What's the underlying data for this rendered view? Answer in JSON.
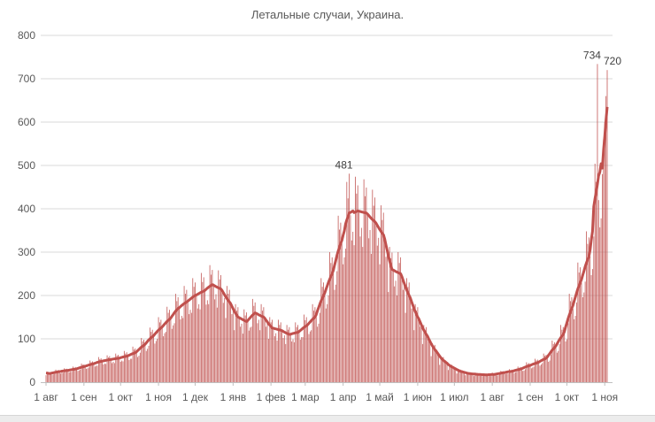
{
  "chart_data": {
    "type": "bar",
    "title": "Летальные случаи, Украина.",
    "xlabel": "",
    "ylabel": "",
    "start_date": "2020-08-01",
    "end_date": "2021-11-03",
    "ylim": [
      0,
      800
    ],
    "y_ticks": [
      "0",
      "100",
      "200",
      "300",
      "400",
      "500",
      "600",
      "700",
      "800"
    ],
    "x_tick_labels": [
      "1 авг",
      "1 сен",
      "1 окт",
      "1 ноя",
      "1 дек",
      "1 янв",
      "1 фев",
      "1 мар",
      "1 апр",
      "1 май",
      "1 июн",
      "1 июл",
      "1 авг",
      "1 сен",
      "1 окт",
      "1 ноя"
    ],
    "x_tick_dates": [
      "2020-08-01",
      "2020-09-01",
      "2020-10-01",
      "2020-11-01",
      "2020-12-01",
      "2021-01-01",
      "2021-02-01",
      "2021-03-01",
      "2021-04-01",
      "2021-05-01",
      "2021-06-01",
      "2021-07-01",
      "2021-08-01",
      "2021-09-01",
      "2021-10-01",
      "2021-11-01"
    ],
    "grid": true,
    "legend": "none",
    "series": [
      {
        "kind": "bar",
        "color": "#c0504d",
        "values": [
          16,
          24,
          22,
          23,
          20,
          17,
          18,
          19,
          29,
          26,
          28,
          24,
          20,
          22,
          22,
          32,
          30,
          31,
          27,
          23,
          24,
          24,
          36,
          33,
          35,
          30,
          26,
          27,
          29,
          43,
          40,
          41,
          36,
          31,
          32,
          34,
          50,
          46,
          48,
          42,
          36,
          38,
          38,
          58,
          53,
          55,
          48,
          41,
          43,
          42,
          62,
          57,
          60,
          52,
          44,
          47,
          44,
          66,
          61,
          63,
          55,
          47,
          50,
          48,
          72,
          66,
          69,
          60,
          51,
          54,
          54,
          82,
          75,
          78,
          68,
          58,
          61,
          68,
          102,
          94,
          98,
          85,
          72,
          77,
          84,
          126,
          116,
          121,
          105,
          89,
          95,
          100,
          150,
          138,
          144,
          125,
          106,
          113,
          116,
          174,
          160,
          167,
          145,
          123,
          131,
          136,
          204,
          187,
          196,
          170,
          145,
          153,
          148,
          222,
          204,
          213,
          185,
          157,
          167,
          160,
          240,
          220,
          230,
          200,
          170,
          180,
          168,
          252,
          231,
          242,
          210,
          179,
          189,
          180,
          270,
          248,
          259,
          225,
          191,
          203,
          172,
          258,
          237,
          247,
          215,
          183,
          194,
          148,
          222,
          204,
          213,
          185,
          157,
          167,
          120,
          180,
          165,
          173,
          150,
          128,
          135,
          112,
          168,
          154,
          161,
          140,
          119,
          126,
          128,
          192,
          176,
          184,
          160,
          136,
          144,
          120,
          180,
          165,
          173,
          150,
          128,
          135,
          100,
          150,
          138,
          144,
          125,
          106,
          113,
          96,
          144,
          132,
          138,
          120,
          102,
          108,
          88,
          132,
          121,
          127,
          110,
          94,
          99,
          92,
          138,
          127,
          132,
          115,
          98,
          104,
          104,
          156,
          143,
          150,
          130,
          111,
          117,
          120,
          180,
          165,
          173,
          150,
          128,
          135,
          160,
          240,
          220,
          230,
          200,
          170,
          180,
          200,
          300,
          275,
          288,
          250,
          213,
          225,
          256,
          384,
          352,
          368,
          320,
          272,
          288,
          308,
          462,
          424,
          481,
          385,
          327,
          347,
          316,
          474,
          435,
          454,
          395,
          336,
          356,
          312,
          468,
          429,
          449,
          390,
          332,
          351,
          296,
          444,
          407,
          426,
          370,
          315,
          333,
          272,
          408,
          374,
          391,
          340,
          289,
          306,
          208,
          312,
          286,
          299,
          260,
          221,
          234,
          200,
          300,
          275,
          288,
          250,
          213,
          225,
          160,
          240,
          220,
          230,
          200,
          170,
          180,
          120,
          180,
          165,
          173,
          150,
          128,
          135,
          88,
          132,
          121,
          127,
          110,
          94,
          99,
          60,
          90,
          83,
          86,
          75,
          64,
          68,
          40,
          60,
          55,
          58,
          50,
          43,
          45,
          28,
          42,
          39,
          40,
          35,
          30,
          32,
          20,
          30,
          28,
          29,
          25,
          21,
          23,
          16,
          24,
          22,
          23,
          20,
          17,
          18,
          14,
          22,
          20,
          21,
          18,
          15,
          16,
          14,
          20,
          19,
          20,
          17,
          14,
          15,
          14,
          22,
          20,
          21,
          18,
          15,
          16,
          18,
          26,
          24,
          25,
          22,
          19,
          20,
          20,
          30,
          28,
          29,
          25,
          21,
          23,
          24,
          36,
          33,
          35,
          30,
          26,
          27,
          30,
          46,
          42,
          44,
          38,
          32,
          34,
          36,
          54,
          50,
          52,
          45,
          38,
          41,
          44,
          66,
          61,
          63,
          55,
          47,
          50,
          64,
          96,
          88,
          92,
          80,
          68,
          72,
          88,
          132,
          121,
          127,
          110,
          94,
          99,
          136,
          204,
          187,
          196,
          170,
          145,
          153,
          184,
          276,
          253,
          265,
          230,
          196,
          207,
          232,
          348,
          319,
          334,
          290,
          247,
          261,
          336,
          504,
          462,
          734,
          420,
          357,
          378,
          480,
          560,
          600,
          660,
          720
        ]
      },
      {
        "kind": "line",
        "smoothing": "7-day moving average",
        "color": "#c0504d"
      }
    ],
    "annotations": [
      {
        "date": "2021-04-06",
        "value": 481,
        "label": "481"
      },
      {
        "date": "2021-10-26",
        "value": 734,
        "label": "734"
      },
      {
        "date": "2021-11-03",
        "value": 720,
        "label": "720"
      }
    ]
  }
}
